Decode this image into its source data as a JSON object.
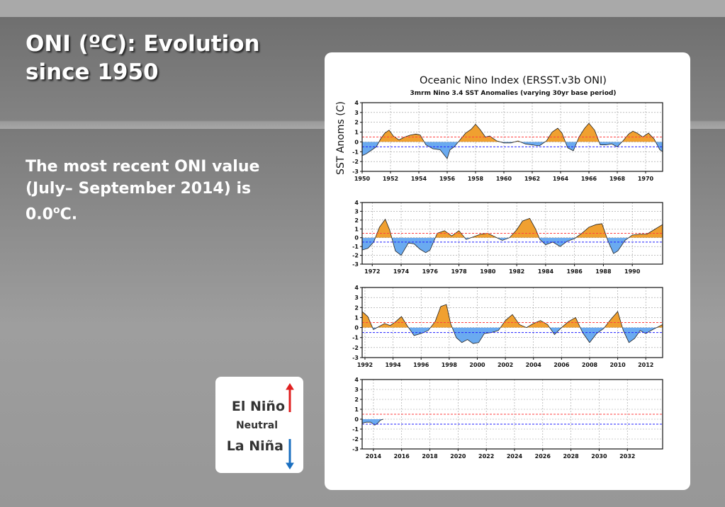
{
  "slide": {
    "title_line1": "ONI (ºC): Evolution",
    "title_line2": "since 1950",
    "body_line1": "The most recent ONI value",
    "body_line2": "(July– September 2014) is",
    "body_line3_prefix": "0.0",
    "body_line3_sup": "o",
    "body_line3_suffix": "C."
  },
  "legend": {
    "el_nino": "El Niño",
    "neutral": "Neutral",
    "la_nina": "La Niña",
    "up_arrow_color": "#e02020",
    "down_arrow_color": "#1a6fc0"
  },
  "chart_data": {
    "type": "area",
    "title": "Oceanic Nino Index (ERSST.v3b ONI)",
    "subtitle": "3mrm Nino 3.4 SST Anomalies (varying 30yr base period)",
    "ylabel": "SST Anoms (C)",
    "ylim": [
      -3,
      4
    ],
    "yticks": [
      -3,
      -2,
      -1,
      0,
      1,
      2,
      3,
      4
    ],
    "grid": true,
    "warm_threshold": 0.5,
    "cold_threshold": -0.5,
    "positive_color": "#f0a030",
    "negative_color": "#6aaaf0",
    "threshold_warm_color": "#ff4040",
    "threshold_cold_color": "#2020ff",
    "panels": [
      {
        "x_range": [
          1950,
          1971.2
        ],
        "x_ticks": [
          "1950",
          "1952",
          "1954",
          "1956",
          "1958",
          "1960",
          "1962",
          "1964",
          "1966",
          "1968",
          "1970"
        ],
        "x_tick_values": [
          1950,
          1952,
          1954,
          1956,
          1958,
          1960,
          1962,
          1964,
          1966,
          1968,
          1970
        ],
        "x": [
          1950,
          1950.3,
          1950.7,
          1951,
          1951.3,
          1951.6,
          1951.9,
          1952.2,
          1952.6,
          1953,
          1953.4,
          1953.8,
          1954.1,
          1954.5,
          1955,
          1955.5,
          1956,
          1956.2,
          1956.5,
          1956.9,
          1957.3,
          1957.7,
          1958,
          1958.3,
          1958.7,
          1959,
          1959.5,
          1960,
          1960.5,
          1961,
          1961.5,
          1962,
          1962.5,
          1963,
          1963.4,
          1963.8,
          1964.1,
          1964.5,
          1964.9,
          1965.3,
          1965.7,
          1966,
          1966.4,
          1966.8,
          1967.2,
          1967.6,
          1968,
          1968.4,
          1968.8,
          1969.1,
          1969.4,
          1969.8,
          1970.2,
          1970.6,
          1971,
          1971.2
        ],
        "y": [
          -1.4,
          -1.2,
          -0.8,
          -0.5,
          0.3,
          0.9,
          1.2,
          0.6,
          0.2,
          0.5,
          0.7,
          0.8,
          0.7,
          -0.3,
          -0.7,
          -0.8,
          -1.7,
          -0.8,
          -0.5,
          0.2,
          0.9,
          1.3,
          1.8,
          1.3,
          0.5,
          0.6,
          0.1,
          -0.1,
          -0.1,
          0.1,
          -0.2,
          -0.3,
          -0.4,
          0.1,
          1.0,
          1.4,
          0.9,
          -0.6,
          -0.9,
          0.5,
          1.4,
          1.9,
          1.2,
          -0.3,
          -0.3,
          -0.2,
          -0.5,
          0.1,
          0.8,
          1.1,
          0.9,
          0.5,
          0.9,
          0.3,
          -0.8,
          -1.0
        ]
      },
      {
        "x_range": [
          1971.3,
          1992.1
        ],
        "x_ticks": [
          "1972",
          "1974",
          "1976",
          "1978",
          "1980",
          "1982",
          "1984",
          "1986",
          "1988",
          "1990"
        ],
        "x_tick_values": [
          1972,
          1974,
          1976,
          1978,
          1980,
          1982,
          1984,
          1986,
          1988,
          1990
        ],
        "x": [
          1971.3,
          1971.7,
          1972.1,
          1972.5,
          1972.9,
          1973.2,
          1973.6,
          1974,
          1974.5,
          1974.9,
          1975.3,
          1975.7,
          1976,
          1976.5,
          1977,
          1977.5,
          1978,
          1978.5,
          1979,
          1979.5,
          1980,
          1980.5,
          1981,
          1981.5,
          1982,
          1982.4,
          1982.9,
          1983.3,
          1983.6,
          1984,
          1984.5,
          1985,
          1985.5,
          1986,
          1986.5,
          1987,
          1987.5,
          1987.9,
          1988.3,
          1988.7,
          1989,
          1989.5,
          1990,
          1990.5,
          1991,
          1991.5,
          1992.1
        ],
        "y": [
          -1.4,
          -1.2,
          -0.5,
          1.2,
          2.1,
          0.9,
          -1.5,
          -2.0,
          -0.6,
          -0.7,
          -1.3,
          -1.7,
          -1.4,
          0.5,
          0.8,
          0.2,
          0.8,
          -0.2,
          0.1,
          0.4,
          0.5,
          0.1,
          -0.3,
          0.0,
          0.9,
          1.9,
          2.2,
          1.0,
          -0.2,
          -0.8,
          -0.5,
          -1.0,
          -0.4,
          -0.1,
          0.5,
          1.2,
          1.5,
          1.6,
          -0.3,
          -1.8,
          -1.5,
          -0.3,
          0.3,
          0.4,
          0.4,
          0.9,
          1.5
        ]
      },
      {
        "x_range": [
          1991.8,
          2013.2
        ],
        "x_ticks": [
          "1992",
          "1994",
          "1996",
          "1998",
          "2000",
          "2002",
          "2004",
          "2006",
          "2008",
          "2010",
          "2012"
        ],
        "x_tick_values": [
          1992,
          1994,
          1996,
          1998,
          2000,
          2002,
          2004,
          2006,
          2008,
          2010,
          2012
        ],
        "x": [
          1991.8,
          1992.2,
          1992.6,
          1993,
          1993.4,
          1993.8,
          1994.2,
          1994.6,
          1995,
          1995.5,
          1996,
          1996.5,
          1997,
          1997.4,
          1997.8,
          1998.1,
          1998.5,
          1998.9,
          1999.3,
          1999.7,
          2000.1,
          2000.5,
          2001,
          2001.5,
          2002,
          2002.5,
          2003,
          2003.5,
          2004,
          2004.5,
          2005,
          2005.5,
          2006,
          2006.5,
          2007,
          2007.5,
          2008,
          2008.5,
          2009,
          2009.5,
          2010,
          2010.4,
          2010.8,
          2011.2,
          2011.6,
          2012,
          2012.5,
          2013.2
        ],
        "y": [
          1.6,
          1.1,
          -0.2,
          0.1,
          0.4,
          0.2,
          0.6,
          1.1,
          0.2,
          -0.8,
          -0.6,
          -0.3,
          0.6,
          2.1,
          2.3,
          0.4,
          -1.0,
          -1.5,
          -1.2,
          -1.6,
          -1.5,
          -0.6,
          -0.5,
          -0.3,
          0.7,
          1.3,
          0.3,
          0.0,
          0.4,
          0.7,
          0.3,
          -0.7,
          0.0,
          0.6,
          1.0,
          -0.5,
          -1.5,
          -0.6,
          -0.1,
          0.8,
          1.6,
          -0.3,
          -1.5,
          -1.1,
          -0.3,
          -0.6,
          -0.2,
          0.3
        ]
      },
      {
        "x_range": [
          2013.2,
          2034.5
        ],
        "x_ticks": [
          "2014",
          "2016",
          "2018",
          "2020",
          "2022",
          "2024",
          "2026",
          "2028",
          "2030",
          "2032"
        ],
        "x_tick_values": [
          2014,
          2016,
          2018,
          2020,
          2022,
          2024,
          2026,
          2028,
          2030,
          2032
        ],
        "x": [
          2013.2,
          2013.5,
          2013.8,
          2014.1,
          2014.3,
          2014.5,
          2014.7
        ],
        "y": [
          -0.4,
          -0.3,
          -0.3,
          -0.6,
          -0.4,
          -0.1,
          0.0
        ]
      }
    ]
  }
}
